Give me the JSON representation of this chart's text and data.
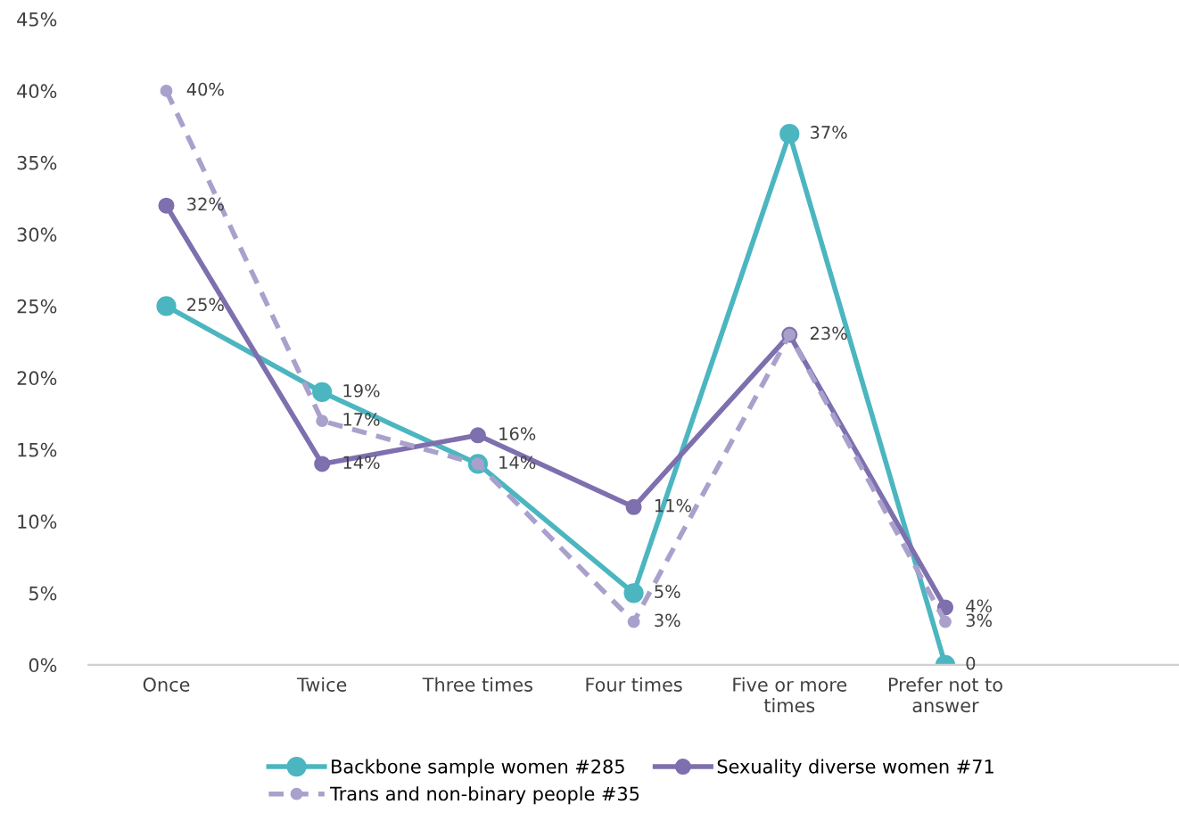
{
  "chart_data": {
    "type": "line",
    "categories": [
      "Once",
      "Twice",
      "Three times",
      "Four times",
      "Five or more\ntimes",
      "Prefer not to\nanswer"
    ],
    "ylim": [
      0,
      45
    ],
    "yticks": [
      {
        "value": 0,
        "label": "0%"
      },
      {
        "value": 5,
        "label": "5%"
      },
      {
        "value": 10,
        "label": "10%"
      },
      {
        "value": 15,
        "label": "15%"
      },
      {
        "value": 20,
        "label": "20%"
      },
      {
        "value": 25,
        "label": "25%"
      },
      {
        "value": 30,
        "label": "30%"
      },
      {
        "value": 35,
        "label": "35%"
      },
      {
        "value": 40,
        "label": "40%"
      },
      {
        "value": 45,
        "label": "45%"
      }
    ],
    "grid": false,
    "legend": "bottom",
    "marker": "circle",
    "series": [
      {
        "name": "Backbone sample women #285",
        "color": "#4bb6c0",
        "line_style": "solid",
        "values": [
          25,
          19,
          14,
          5,
          37,
          0
        ],
        "value_labels": [
          "25%",
          "19%",
          null,
          "5%",
          "37%",
          "0"
        ]
      },
      {
        "name": "Sexuality diverse women #71",
        "color": "#7e6fae",
        "line_style": "solid",
        "values": [
          32,
          14,
          16,
          11,
          23,
          4
        ],
        "value_labels": [
          "32%",
          "14%",
          "16%",
          "11%",
          null,
          "4%"
        ]
      },
      {
        "name": "Trans and non-binary people #35",
        "color": "#a9a1cc",
        "line_style": "dashed",
        "values": [
          40,
          17,
          14,
          3,
          23,
          3
        ],
        "value_labels": [
          "40%",
          "17%",
          "14%",
          "3%",
          "23%",
          "3%"
        ]
      }
    ]
  }
}
